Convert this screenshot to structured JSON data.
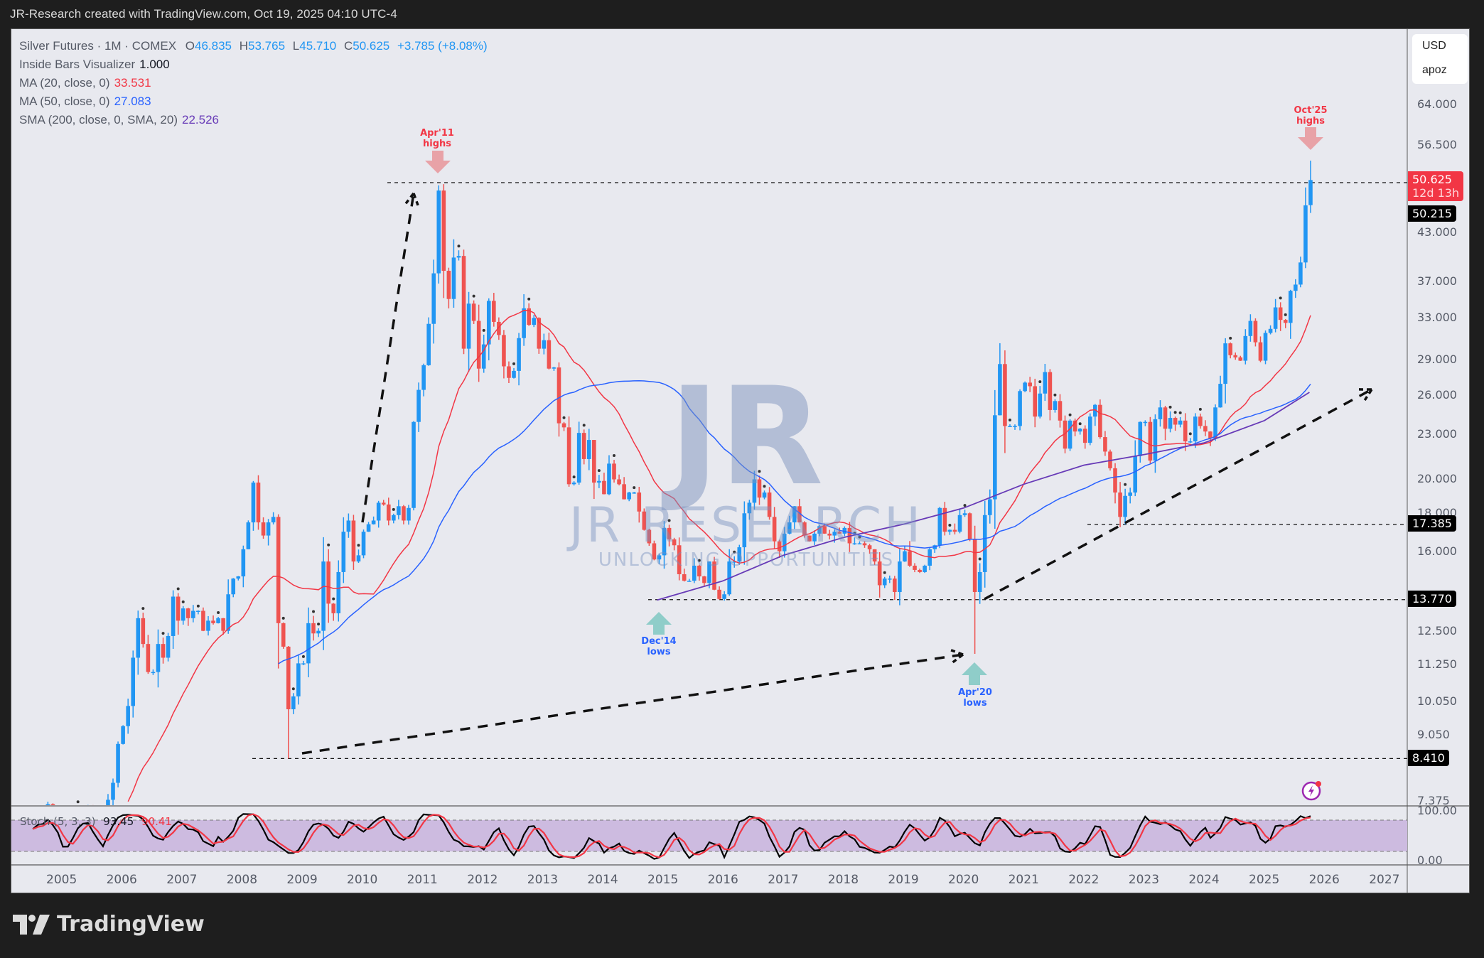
{
  "header": {
    "attribution": "JR-Research created with TradingView.com, Oct 19, 2025 04:10 UTC-4"
  },
  "legend": {
    "symbol": "Silver Futures · 1M · COMEX",
    "open_label": "O",
    "open": "46.835",
    "high_label": "H",
    "high": "53.765",
    "low_label": "L",
    "low": "45.710",
    "close_label": "C",
    "close": "50.625",
    "change": "+3.785 (+8.08%)",
    "indicators": [
      {
        "name": "Inside Bars Visualizer",
        "value": "1.000",
        "color": "#131722"
      },
      {
        "name": "MA (20, close, 0)",
        "value": "33.531",
        "color": "#f23645"
      },
      {
        "name": "MA (50, close, 0)",
        "value": "27.083",
        "color": "#2962ff"
      },
      {
        "name": "SMA (200, close, 0, SMA, 20)",
        "value": "22.526",
        "color": "#673ab7"
      }
    ]
  },
  "price_scale": {
    "currency": "USD",
    "unit": "apoz",
    "labels": [
      "64.000",
      "56.500",
      "43.000",
      "37.000",
      "33.000",
      "29.000",
      "26.000",
      "23.000",
      "20.000",
      "18.000",
      "16.000",
      "12.500",
      "11.250",
      "10.050",
      "9.050",
      "7.375"
    ],
    "current_price": "50.625",
    "countdown": "12d 13h",
    "level_tags": [
      "50.215",
      "17.385",
      "13.770",
      "8.410"
    ]
  },
  "stoch": {
    "name": "Stoch (5, 3, 3)",
    "k_value": "93.45",
    "d_value": "90.41",
    "scale_labels": [
      "100.00",
      "0.00"
    ]
  },
  "time_axis": [
    "2005",
    "2006",
    "2007",
    "2008",
    "2009",
    "2010",
    "2011",
    "2012",
    "2013",
    "2014",
    "2015",
    "2016",
    "2017",
    "2018",
    "2019",
    "2020",
    "2021",
    "2022",
    "2023",
    "2024",
    "2025",
    "2026",
    "2027"
  ],
  "annotations": {
    "apr11": {
      "line1": "Apr'11",
      "line2": "highs"
    },
    "oct25": {
      "line1": "Oct'25",
      "line2": "highs"
    },
    "dec14": {
      "line1": "Dec'14",
      "line2": "lows"
    },
    "apr20": {
      "line1": "Apr'20",
      "line2": "lows"
    }
  },
  "watermark": {
    "logo": "JR",
    "name": "JR RESEARCH",
    "tagline": "UNLOCKING OPPORTUNITIES"
  },
  "branding": {
    "logo_text": "TradingView"
  },
  "colors": {
    "up": "#2196f3",
    "down": "#ef5350",
    "ma20": "#f23645",
    "ma50": "#2962ff",
    "sma200": "#673ab7",
    "stoch_k": "#000000",
    "stoch_d": "#f23645",
    "stoch_band": "#cdbbe0",
    "high_annot": "#f23645",
    "low_annot": "#2962ff"
  },
  "chart_data": {
    "type": "candlestick",
    "title": "Silver Futures · 1M · COMEX",
    "scale": "log",
    "ylim": [
      7.0,
      70.0
    ],
    "x_start": "2004-07",
    "x_end": "2025-10",
    "horizontal_levels": [
      50.215,
      17.385,
      13.77,
      8.41
    ],
    "indicators": {
      "MA20": 33.531,
      "MA50": 27.083,
      "SMA200": 22.526,
      "Stoch_K": 93.45,
      "Stoch_D": 90.41
    },
    "last_bar": {
      "open": 46.835,
      "high": 53.765,
      "low": 45.71,
      "close": 50.625,
      "change": 3.785,
      "change_pct": 8.08
    },
    "monthly_closes_approx": [
      6.6,
      6.7,
      7.0,
      7.3,
      6.9,
      6.8,
      6.6,
      6.9,
      7.2,
      7.0,
      7.1,
      7.2,
      6.8,
      6.9,
      7.0,
      7.4,
      7.8,
      8.8,
      9.3,
      9.9,
      11.5,
      13.0,
      12.0,
      11.0,
      11.0,
      12.0,
      11.5,
      12.3,
      13.9,
      12.9,
      13.4,
      13.0,
      13.3,
      13.3,
      12.5,
      12.9,
      12.8,
      13.0,
      12.5,
      14.0,
      14.7,
      14.8,
      16.1,
      17.5,
      19.8,
      17.5,
      16.8,
      17.5,
      17.8,
      12.8,
      11.9,
      9.8,
      10.2,
      11.3,
      11.3,
      12.8,
      12.4,
      12.5,
      15.5,
      13.6,
      13.2,
      15.0,
      17.0,
      17.6,
      15.5,
      15.8,
      17.0,
      17.4,
      17.6,
      18.6,
      18.5,
      17.6,
      17.9,
      18.4,
      17.6,
      18.3,
      23.9,
      26.4,
      28.5,
      32.4,
      37.9,
      49.0,
      38.2,
      35.0,
      39.8,
      40.0,
      30.0,
      34.5,
      32.7,
      28.2,
      30.4,
      34.8,
      32.6,
      31.3,
      28.4,
      27.4,
      28.0,
      31.0,
      34.0,
      32.3,
      33.0,
      30.0,
      30.8,
      28.2,
      28.3,
      23.8,
      23.5,
      19.7,
      19.8,
      23.1,
      21.3,
      22.6,
      19.8,
      19.9,
      19.1,
      21.0,
      20.0,
      19.7,
      18.8,
      19.2,
      19.2,
      18.1,
      17.1,
      16.4,
      15.6,
      15.8,
      17.2,
      16.6,
      16.3,
      14.9,
      14.6,
      14.6,
      15.3,
      14.8,
      14.5,
      15.5,
      14.2,
      13.8,
      14.0,
      15.5,
      15.5,
      16.2,
      18.0,
      18.6,
      20.0,
      18.9,
      19.2,
      17.8,
      16.5,
      16.0,
      16.9,
      17.5,
      18.4,
      17.5,
      16.8,
      16.5,
      16.9,
      17.3,
      16.9,
      16.8,
      17.0,
      16.9,
      17.2,
      16.4,
      16.4,
      16.4,
      16.3,
      16.1,
      15.5,
      14.4,
      14.7,
      14.7,
      14.1,
      15.5,
      16.0,
      15.3,
      15.1,
      15.0,
      15.3,
      16.1,
      16.3,
      18.3,
      17.0,
      17.1,
      17.0,
      17.9,
      18.0,
      16.6,
      14.1,
      15.0,
      17.9,
      18.8,
      24.4,
      28.6,
      23.6,
      23.6,
      23.6,
      26.3,
      27.0,
      26.7,
      24.3,
      26.1,
      27.9,
      24.8,
      25.5,
      24.0,
      22.0,
      24.0,
      23.2,
      23.4,
      22.4,
      24.3,
      25.2,
      22.8,
      21.8,
      20.7,
      19.2,
      17.8,
      19.0,
      19.2,
      21.5,
      23.9,
      23.9,
      21.2,
      24.1,
      25.0,
      23.4,
      24.2,
      23.7,
      24.0,
      22.5,
      22.5,
      24.3,
      23.6,
      23.2,
      22.7,
      25.0,
      26.9,
      30.5,
      29.4,
      29.2,
      28.9,
      31.2,
      32.7,
      30.6,
      28.9,
      31.5,
      31.9,
      34.1,
      32.8,
      32.5,
      35.9,
      36.6,
      39.2,
      46.8,
      50.6
    ]
  }
}
